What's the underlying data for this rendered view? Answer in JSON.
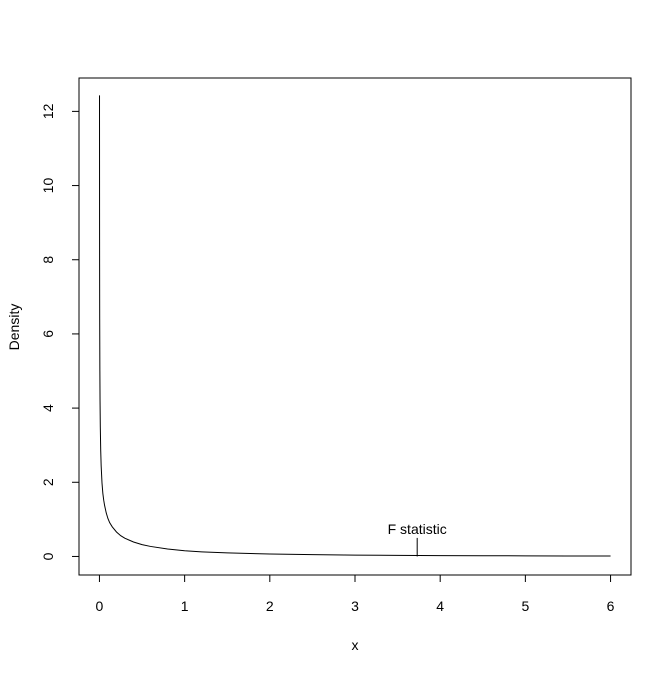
{
  "chart_data": {
    "type": "line",
    "title": "",
    "xlabel": "x",
    "ylabel": "Density",
    "xlim": [
      -0.24,
      6.24
    ],
    "ylim": [
      -0.5,
      12.9
    ],
    "xticks": [
      0,
      1,
      2,
      3,
      4,
      5,
      6
    ],
    "yticks": [
      0,
      2,
      4,
      6,
      8,
      10,
      12
    ],
    "grid": false,
    "legend": "none",
    "series": [
      {
        "color": "#000000",
        "x": [
          0.0008,
          0.001,
          0.0015,
          0.002,
          0.003,
          0.005,
          0.007,
          0.01,
          0.015,
          0.02,
          0.03,
          0.04,
          0.05,
          0.06,
          0.08,
          0.1,
          0.12,
          0.15,
          0.2,
          0.25,
          0.3,
          0.4,
          0.5,
          0.6,
          0.8,
          1.0,
          1.2,
          1.5,
          2.0,
          2.5,
          3.0,
          3.5,
          4.0,
          4.5,
          5.0,
          5.5,
          6.0
        ],
        "y": [
          12.43,
          11.2,
          9.1,
          7.9,
          6.4,
          5.0,
          4.2,
          3.5,
          2.85,
          2.45,
          1.98,
          1.7,
          1.52,
          1.38,
          1.17,
          1.02,
          0.91,
          0.8,
          0.66,
          0.56,
          0.49,
          0.39,
          0.32,
          0.27,
          0.2,
          0.155,
          0.125,
          0.095,
          0.065,
          0.048,
          0.037,
          0.029,
          0.024,
          0.02,
          0.017,
          0.014,
          0.012
        ]
      }
    ],
    "annotations": [
      {
        "text": "F statistic",
        "x": 3.73,
        "y": 0.6,
        "marker_x": 3.73,
        "marker_y0": 0.0,
        "marker_y1": 0.5
      }
    ]
  }
}
